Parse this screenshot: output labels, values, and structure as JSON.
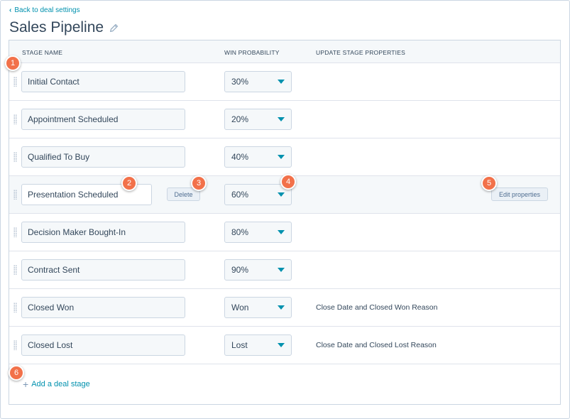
{
  "header": {
    "back_label": "Back to deal settings",
    "title": "Sales Pipeline"
  },
  "table": {
    "columns": [
      "STAGE NAME",
      "WIN PROBABILITY",
      "UPDATE STAGE PROPERTIES"
    ],
    "rows": [
      {
        "stage": "Initial Contact",
        "probability": "30%",
        "props": ""
      },
      {
        "stage": "Appointment Scheduled",
        "probability": "20%",
        "props": ""
      },
      {
        "stage": "Qualified To Buy",
        "probability": "40%",
        "props": ""
      },
      {
        "stage": "Presentation Scheduled",
        "probability": "60%",
        "props": "",
        "delete_label": "Delete",
        "edit_label": "Edit properties"
      },
      {
        "stage": "Decision Maker Bought-In",
        "probability": "80%",
        "props": ""
      },
      {
        "stage": "Contract Sent",
        "probability": "90%",
        "props": ""
      },
      {
        "stage": "Closed Won",
        "probability": "Won",
        "props": "Close Date and Closed Won Reason"
      },
      {
        "stage": "Closed Lost",
        "probability": "Lost",
        "props": "Close Date and Closed Lost Reason"
      }
    ],
    "add_stage_label": "Add a deal stage"
  },
  "callouts": [
    "1",
    "2",
    "3",
    "4",
    "5",
    "6"
  ],
  "colors": {
    "accent": "#0091ae",
    "callout": "#f2714a",
    "text": "#33475b"
  }
}
